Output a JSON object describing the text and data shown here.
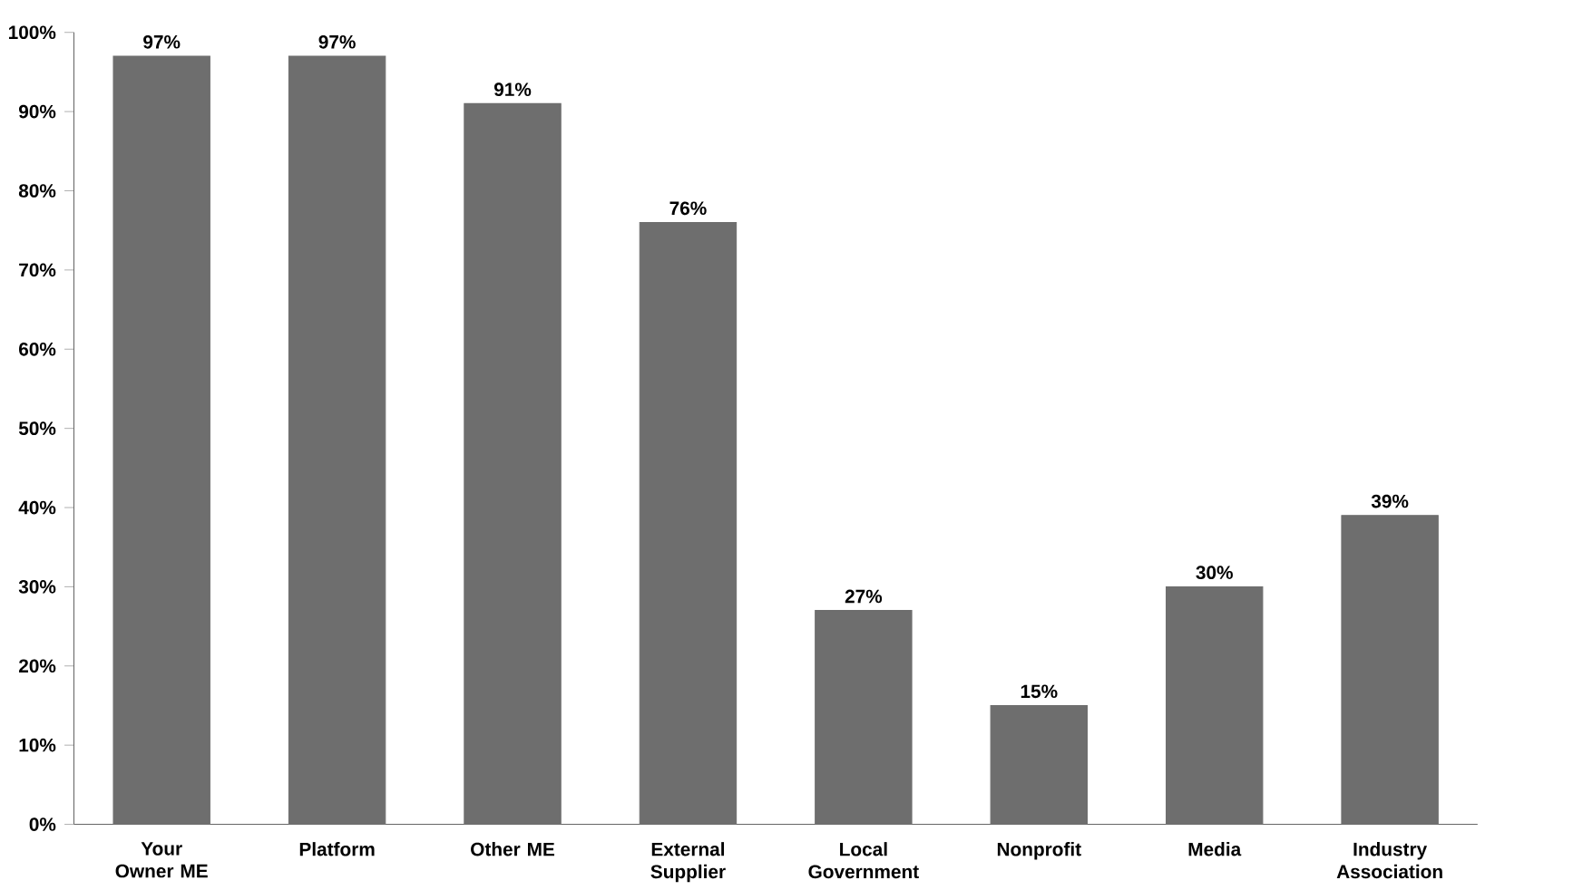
{
  "chart_data": {
    "type": "bar",
    "categories": [
      "Your Owner ME",
      "Platform",
      "Other ME",
      "External Supplier",
      "Local Government",
      "Nonprofit",
      "Media",
      "Industry Association"
    ],
    "values": [
      97,
      97,
      91,
      76,
      27,
      15,
      30,
      39
    ],
    "value_labels": [
      "97%",
      "97%",
      "91%",
      "76%",
      "27%",
      "15%",
      "30%",
      "39%"
    ],
    "color": "#6e6e6e",
    "ylim": [
      0,
      100
    ],
    "yticks": [
      {
        "value": 0,
        "label": "0%"
      },
      {
        "value": 10,
        "label": "10%"
      },
      {
        "value": 20,
        "label": "20%"
      },
      {
        "value": 30,
        "label": "30%"
      },
      {
        "value": 40,
        "label": "40%"
      },
      {
        "value": 50,
        "label": "50%"
      },
      {
        "value": 60,
        "label": "60%"
      },
      {
        "value": 70,
        "label": "70%"
      },
      {
        "value": 80,
        "label": "80%"
      },
      {
        "value": 90,
        "label": "90%"
      },
      {
        "value": 100,
        "label": "100%"
      }
    ],
    "grid": false
  }
}
